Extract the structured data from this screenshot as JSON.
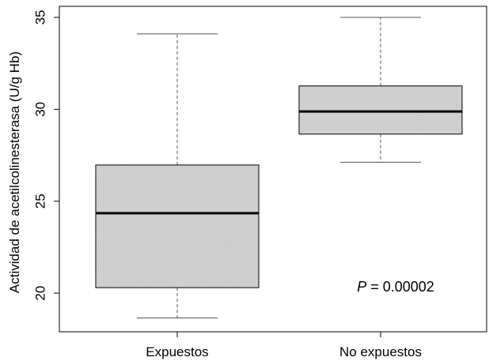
{
  "chart_data": {
    "type": "box",
    "title": "",
    "xlabel": "",
    "ylabel": "Actividad de acetilcolinesterasa (U/g Hb)",
    "ylim": [
      17.9,
      35.6
    ],
    "yticks": [
      20,
      25,
      30,
      35
    ],
    "categories": [
      "Expuestos",
      "No expuestos"
    ],
    "boxes": [
      {
        "category": "Expuestos",
        "whisker_low": 18.65,
        "q1": 20.3,
        "median": 24.35,
        "q3": 26.97,
        "whisker_high": 34.1
      },
      {
        "category": "No expuestos",
        "whisker_low": 27.12,
        "q1": 28.65,
        "median": 29.88,
        "q3": 31.27,
        "whisker_high": 35.0
      }
    ],
    "annotation": {
      "p_label": "P",
      "p_value": " = 0.00002"
    },
    "colors": {
      "box_fill": "#d3d3d3",
      "stroke": "#000000",
      "whisker": "#555555"
    },
    "grid": false,
    "legend": "none"
  }
}
